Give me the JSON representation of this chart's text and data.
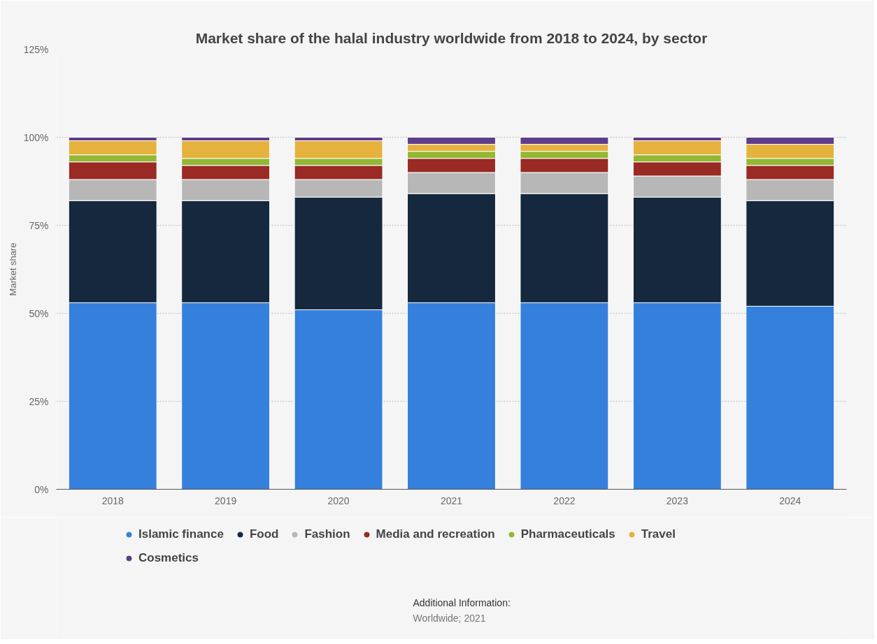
{
  "chart_data": {
    "type": "bar",
    "title": "Market share of the halal industry worldwide from 2018 to 2024, by sector",
    "ylabel": "Market share",
    "categories": [
      "2018",
      "2019",
      "2020",
      "2021",
      "2022",
      "2023",
      "2024"
    ],
    "stacked": true,
    "series": [
      {
        "name": "Islamic finance",
        "color": "#3580dc",
        "values": [
          53,
          53,
          51,
          53,
          53,
          53,
          52
        ]
      },
      {
        "name": "Food",
        "color": "#15283d",
        "values": [
          29,
          29,
          32,
          31,
          31,
          30,
          30
        ]
      },
      {
        "name": "Fashion",
        "color": "#b7b7b7",
        "values": [
          6,
          6,
          5,
          6,
          6,
          6,
          6
        ]
      },
      {
        "name": "Media and recreation",
        "color": "#992a24",
        "values": [
          5,
          4,
          4,
          4,
          4,
          4,
          4
        ]
      },
      {
        "name": "Pharmaceuticals",
        "color": "#93b833",
        "values": [
          2,
          2,
          2,
          2,
          2,
          2,
          2
        ]
      },
      {
        "name": "Travel",
        "color": "#e5b23d",
        "values": [
          4,
          5,
          5,
          2,
          2,
          4,
          4
        ]
      },
      {
        "name": "Cosmetics",
        "color": "#5e3d8a",
        "values": [
          1,
          1,
          1,
          2,
          2,
          1,
          2
        ]
      }
    ],
    "ylim": [
      0,
      125
    ],
    "yticks": [
      {
        "value": 0,
        "label": "0%"
      },
      {
        "value": 25,
        "label": "25%"
      },
      {
        "value": 50,
        "label": "50%"
      },
      {
        "value": 75,
        "label": "75%"
      },
      {
        "value": 100,
        "label": "100%"
      },
      {
        "value": 125,
        "label": "125%"
      }
    ],
    "grid": "y",
    "legend": "bottom",
    "annotations": [
      "Additional Information:",
      "Worldwide; 2021"
    ]
  }
}
